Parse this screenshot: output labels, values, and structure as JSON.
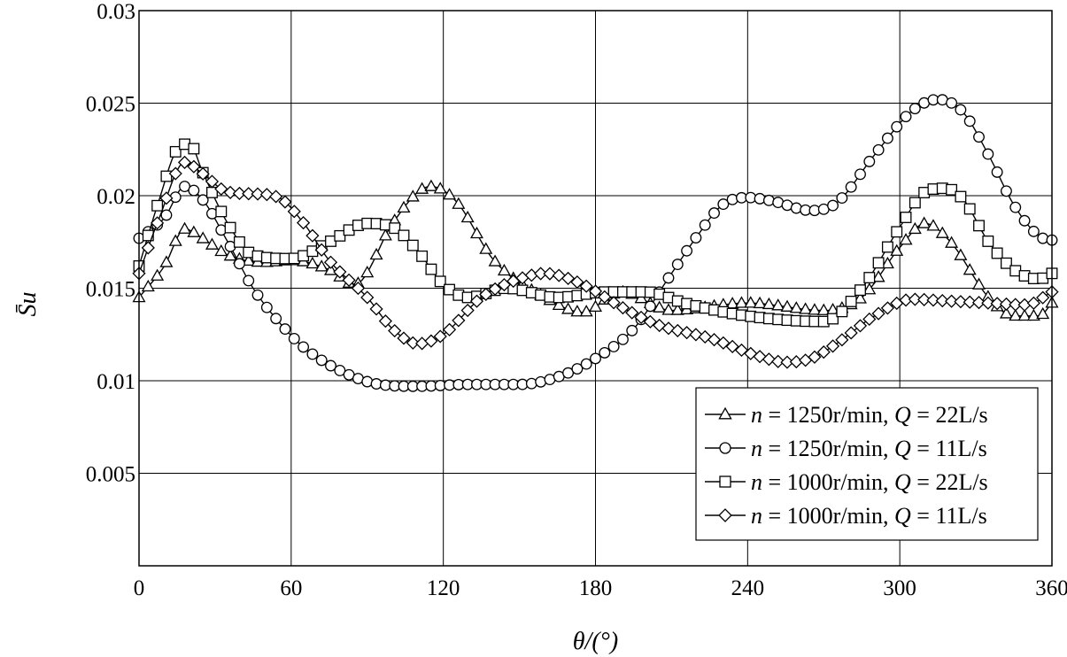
{
  "chart_data": {
    "type": "line",
    "title": "",
    "xlabel": "θ/(°)",
    "ylabel": "S̄u",
    "xlim": [
      0,
      360
    ],
    "ylim": [
      0,
      0.03
    ],
    "xticks": [
      0,
      60,
      120,
      180,
      240,
      300,
      360
    ],
    "yticks": [
      0.005,
      0.01,
      0.015,
      0.02,
      0.025,
      0.03
    ],
    "xtick_labels": [
      "0",
      "60",
      "120",
      "180",
      "240",
      "300",
      "360"
    ],
    "ytick_labels": [
      "0.005",
      "0.01",
      "0.015",
      "0.02",
      "0.025",
      "0.03"
    ],
    "grid": true,
    "legend_position": "lower-right",
    "series": [
      {
        "name": "n = 1250r/min, Q = 22L/s",
        "legend_parts": [
          "n",
          " = 1250r/min, ",
          "Q",
          " = 22L/s"
        ],
        "marker": "triangle",
        "x": [
          0,
          10,
          18,
          25,
          35,
          50,
          60,
          75,
          85,
          100,
          110,
          115,
          125,
          140,
          160,
          175,
          190,
          210,
          240,
          270,
          285,
          300,
          310,
          320,
          335,
          345,
          355,
          360
        ],
        "y": [
          0.0145,
          0.0162,
          0.0182,
          0.0177,
          0.0168,
          0.0164,
          0.0165,
          0.016,
          0.0152,
          0.0185,
          0.0202,
          0.0205,
          0.0197,
          0.0165,
          0.0145,
          0.0137,
          0.0148,
          0.0138,
          0.0142,
          0.0138,
          0.0145,
          0.0172,
          0.0185,
          0.0175,
          0.0145,
          0.0135,
          0.0135,
          0.0142
        ]
      },
      {
        "name": "n = 1250r/min, Q = 11L/s",
        "legend_parts": [
          "n",
          " = 1250r/min, ",
          "Q",
          " = 11L/s"
        ],
        "marker": "circle",
        "x": [
          0,
          10,
          18,
          25,
          35,
          45,
          55,
          65,
          80,
          95,
          110,
          130,
          150,
          165,
          180,
          195,
          210,
          220,
          230,
          240,
          250,
          265,
          275,
          290,
          305,
          315,
          325,
          335,
          345,
          355,
          360
        ],
        "y": [
          0.0177,
          0.0188,
          0.0205,
          0.0198,
          0.0175,
          0.015,
          0.0132,
          0.0118,
          0.0105,
          0.0098,
          0.0097,
          0.0098,
          0.0098,
          0.0102,
          0.0112,
          0.0128,
          0.0158,
          0.0178,
          0.0195,
          0.0199,
          0.0197,
          0.0192,
          0.0196,
          0.0222,
          0.0246,
          0.0252,
          0.0245,
          0.0222,
          0.0195,
          0.0178,
          0.0176
        ]
      },
      {
        "name": "n = 1000r/min, Q = 22L/s",
        "legend_parts": [
          "n",
          " = 1000r/min, ",
          "Q",
          " = 22L/s"
        ],
        "marker": "square",
        "x": [
          0,
          8,
          15,
          20,
          25,
          35,
          45,
          60,
          75,
          90,
          100,
          110,
          120,
          130,
          145,
          165,
          185,
          200,
          215,
          240,
          270,
          285,
          300,
          310,
          318,
          325,
          335,
          345,
          355,
          360
        ],
        "y": [
          0.0162,
          0.0198,
          0.0225,
          0.0228,
          0.0213,
          0.0185,
          0.0168,
          0.0166,
          0.0175,
          0.0185,
          0.0183,
          0.017,
          0.0152,
          0.0145,
          0.015,
          0.0145,
          0.0148,
          0.0148,
          0.0142,
          0.0135,
          0.0132,
          0.015,
          0.0183,
          0.0202,
          0.0204,
          0.0198,
          0.0175,
          0.016,
          0.0155,
          0.0158
        ]
      },
      {
        "name": "n = 1000r/min, Q = 11L/s",
        "legend_parts": [
          "n",
          " = 1000r/min, ",
          "Q",
          " = 11L/s"
        ],
        "marker": "diamond",
        "x": [
          0,
          8,
          18,
          25,
          35,
          45,
          55,
          65,
          75,
          90,
          100,
          110,
          120,
          135,
          150,
          160,
          175,
          190,
          205,
          225,
          245,
          255,
          265,
          275,
          290,
          305,
          320,
          335,
          350,
          360
        ],
        "y": [
          0.0158,
          0.0188,
          0.0218,
          0.0212,
          0.0202,
          0.0201,
          0.0199,
          0.0185,
          0.0165,
          0.0145,
          0.0128,
          0.012,
          0.0125,
          0.0145,
          0.0155,
          0.0158,
          0.0152,
          0.014,
          0.013,
          0.0123,
          0.0113,
          0.011,
          0.0112,
          0.012,
          0.0135,
          0.0144,
          0.0143,
          0.0142,
          0.0141,
          0.0148
        ]
      }
    ]
  }
}
